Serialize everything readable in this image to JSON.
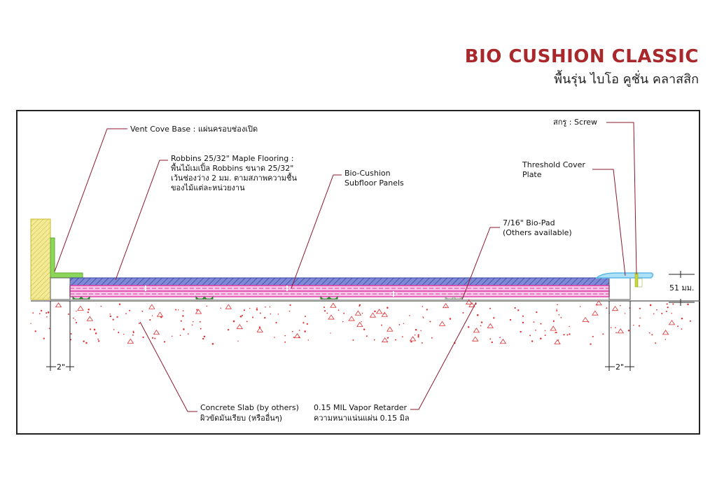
{
  "header": {
    "title": "BIO CUSHION CLASSIC",
    "subtitle": "พื้นรุ่น ไบโอ คูชั่น คลาสสิก"
  },
  "labels": {
    "vent_cove": "Vent Cove Base : แผ่นครอบช่องเปิด",
    "maple_1": "Robbins 25/32\" Maple Flooring :",
    "maple_2": "พื้นไม้เมเปิ้ล Robbins ขนาด 25/32\"",
    "maple_3": "เว้นช่องว่าง 2 มม. ตามสภาพความชื้น",
    "maple_4": "ของไม้แต่ละหน่วยงาน",
    "subfloor_1": "Bio-Cushion",
    "subfloor_2": "Subfloor Panels",
    "biopad_1": "7/16\" Bio-Pad",
    "biopad_2": "(Others available)",
    "screw": "สกรู : Screw",
    "threshold_1": "Threshold Cover",
    "threshold_2": "Plate",
    "concrete_1": "Concrete Slab (by others)",
    "concrete_2": "ผิวขัดมันเรียบ (หรืออื่นๆ)",
    "vapor_1": "0.15 MIL Vapor Retarder",
    "vapor_2": "ความหนาแน่นแผ่น 0.15 มิล"
  },
  "dimensions": {
    "height": "51 มม.",
    "gap_left": "2\"",
    "gap_right": "2\""
  },
  "colors": {
    "title": "#a8282c",
    "leader": "#8b1a2e",
    "flooring": "#4a55b0",
    "subfloor": "#e03aa8",
    "pad": "#3aa83a",
    "cove": "#8cd65a",
    "wall": "#e8d860",
    "threshold": "#5ab8e8",
    "concrete_dots": "#e03030"
  }
}
